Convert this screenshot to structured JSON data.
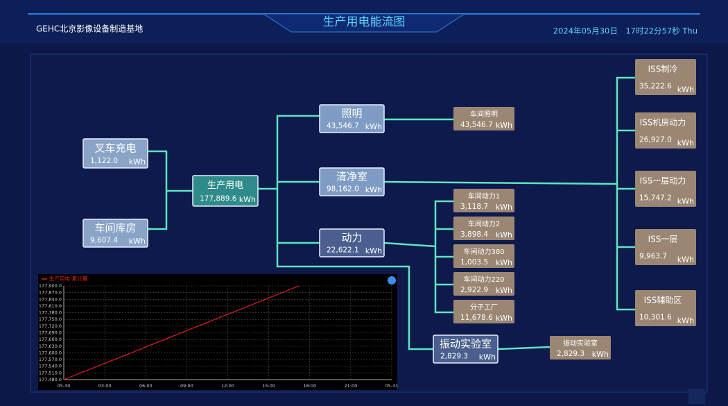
{
  "header": {
    "org": "GEHC北京影像设备制造基地",
    "title": "生产用电能流图",
    "datetime": "2024年05月30日　17时22分57秒 Thu"
  },
  "nodes": [
    {
      "label": "叉车充电",
      "value": "1,122.0",
      "unit": "kWh"
    },
    {
      "label": "车间库房",
      "value": "9,607.4",
      "unit": "kWh"
    },
    {
      "label": "生产用电",
      "value": "177,889.6",
      "unit": "kWh"
    },
    {
      "label": "照明",
      "value": "43,546.7",
      "unit": "kWh"
    },
    {
      "label": "清净室",
      "value": "98,162.0",
      "unit": "kWh"
    },
    {
      "label": "动力",
      "value": "22,622.1",
      "unit": "kWh"
    },
    {
      "label": "振动实验室",
      "value": "2,829.3",
      "unit": "kWh"
    },
    {
      "label": "车间照明",
      "value": "43,546.7",
      "unit": "kWh"
    },
    {
      "label": "车间动力1",
      "value": "3,118.7",
      "unit": "kWh"
    },
    {
      "label": "车间动力2",
      "value": "3,898.4",
      "unit": "kWh"
    },
    {
      "label": "车间动力380",
      "value": "1,003.5",
      "unit": "kWh"
    },
    {
      "label": "车间动力220",
      "value": "2,922.9",
      "unit": "kWh"
    },
    {
      "label": "分子工厂",
      "value": "11,678.6",
      "unit": "kWh"
    },
    {
      "label": "振动实验室",
      "value": "2,829.3",
      "unit": "kWh"
    },
    {
      "label": "ISS制冷",
      "value": "35,222.6",
      "unit": "kWh"
    },
    {
      "label": "ISS机房动力",
      "value": "26,927.0",
      "unit": "kWh"
    },
    {
      "label": "ISS一层动力",
      "value": "15,747.2",
      "unit": "kWh"
    },
    {
      "label": "ISS一层",
      "value": "9,963.7",
      "unit": "kWh"
    },
    {
      "label": "ISS辅助区",
      "value": "10,301.6",
      "unit": "kWh"
    }
  ],
  "trend": {
    "type": "line",
    "legend": "生产用电-累计量",
    "x": [
      0,
      3,
      6,
      9,
      12,
      15,
      17.2
    ],
    "series": [
      {
        "name": "生产用电-累计量",
        "color": "#e0201c",
        "values": [
          177480,
          177553,
          177626,
          177700,
          177773,
          177846,
          177900
        ]
      }
    ],
    "xlim": [
      0,
      24
    ],
    "xticks": [
      {
        "value": 0,
        "label": "05-30"
      },
      {
        "value": 3,
        "label": "03:00"
      },
      {
        "value": 6,
        "label": "06:00"
      },
      {
        "value": 9,
        "label": "09:00"
      },
      {
        "value": 12,
        "label": "12:00"
      },
      {
        "value": 15,
        "label": "15:00"
      },
      {
        "value": 18,
        "label": "18:00"
      },
      {
        "value": 21,
        "label": "21:00"
      },
      {
        "value": 24,
        "label": "05-31"
      }
    ],
    "ylim": [
      177480,
      177900
    ],
    "yticks": [
      {
        "value": 177480,
        "label": "177,480.0"
      },
      {
        "value": 177510,
        "label": "177,510.0"
      },
      {
        "value": 177540,
        "label": "177,540.0"
      },
      {
        "value": 177570,
        "label": "177,570.0"
      },
      {
        "value": 177600,
        "label": "177,600.0"
      },
      {
        "value": 177630,
        "label": "177,630.0"
      },
      {
        "value": 177660,
        "label": "177,660.0"
      },
      {
        "value": 177690,
        "label": "177,690.0"
      },
      {
        "value": 177720,
        "label": "177,720.0"
      },
      {
        "value": 177750,
        "label": "177,750.0"
      },
      {
        "value": 177780,
        "label": "177,780.0"
      },
      {
        "value": 177810,
        "label": "177,810.0"
      },
      {
        "value": 177840,
        "label": "177,840.0"
      },
      {
        "value": 177870,
        "label": "177,870.0"
      },
      {
        "value": 177900,
        "label": "177,900.0"
      }
    ],
    "grid": true
  }
}
